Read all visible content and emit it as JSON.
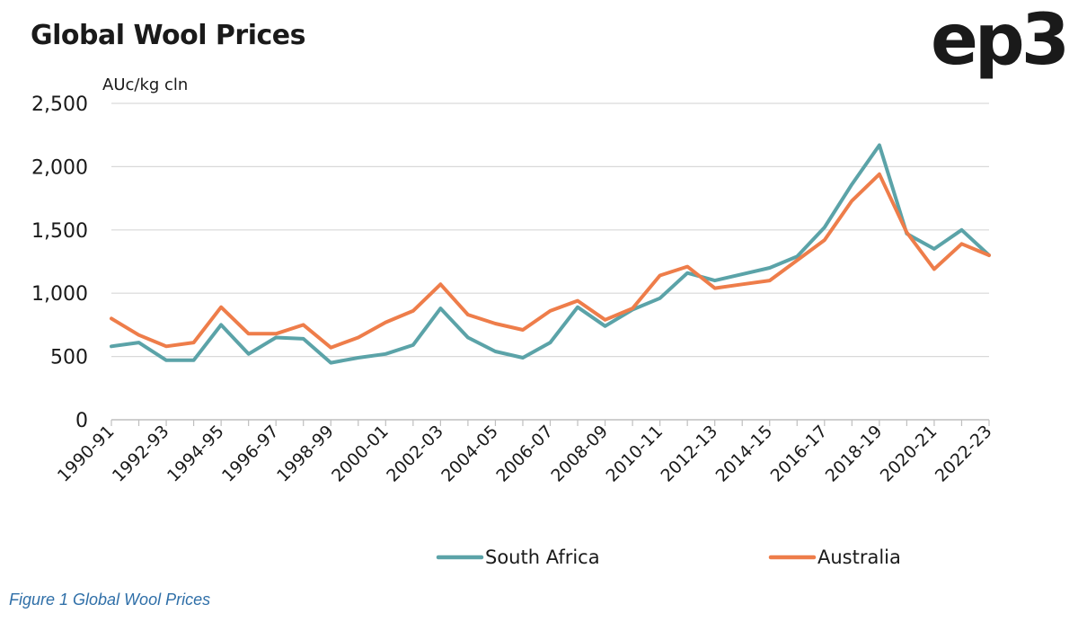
{
  "header": {
    "title": "Global Wool Prices",
    "logo_text": "ep3"
  },
  "caption": "Figure 1 Global Wool Prices",
  "chart_data": {
    "type": "line",
    "title": "Global Wool Prices",
    "ylabel": "AUc/kg cln",
    "xlabel": "",
    "ylim": [
      0,
      2500
    ],
    "yticks": [
      0,
      500,
      1000,
      1500,
      2000,
      2500
    ],
    "ytick_labels": [
      "0",
      "500",
      "1,000",
      "1,500",
      "2,000",
      "2,500"
    ],
    "grid": true,
    "legend_position": "bottom-center",
    "categories": [
      "1990-91",
      "1991-92",
      "1992-93",
      "1993-94",
      "1994-95",
      "1995-96",
      "1996-97",
      "1997-98",
      "1998-99",
      "1999-00",
      "2000-01",
      "2001-02",
      "2002-03",
      "2003-04",
      "2004-05",
      "2005-06",
      "2006-07",
      "2007-08",
      "2008-09",
      "2009-10",
      "2010-11",
      "2011-12",
      "2012-13",
      "2013-14",
      "2014-15",
      "2015-16",
      "2016-17",
      "2017-18",
      "2018-19",
      "2019-20",
      "2020-21",
      "2021-22",
      "2022-23"
    ],
    "tick_labels": [
      "1990-91",
      "1992-93",
      "1994-95",
      "1996-97",
      "1998-99",
      "2000-01",
      "2002-03",
      "2004-05",
      "2006-07",
      "2008-09",
      "2010-11",
      "2012-13",
      "2014-15",
      "2016-17",
      "2018-19",
      "2020-21",
      "2022-23"
    ],
    "series": [
      {
        "name": "South Africa",
        "color": "#5ba3a8",
        "values": [
          580,
          610,
          470,
          470,
          750,
          520,
          650,
          640,
          450,
          490,
          520,
          590,
          880,
          650,
          540,
          490,
          610,
          890,
          740,
          870,
          960,
          1160,
          1100,
          1150,
          1200,
          1290,
          1520,
          1860,
          2170,
          1470,
          1350,
          1500,
          1300
        ]
      },
      {
        "name": "Australia",
        "color": "#ee7d4a",
        "values": [
          800,
          670,
          580,
          610,
          890,
          680,
          680,
          750,
          570,
          650,
          770,
          860,
          1070,
          830,
          760,
          710,
          860,
          940,
          790,
          880,
          1140,
          1210,
          1040,
          1070,
          1100,
          1260,
          1420,
          1730,
          1940,
          1480,
          1190,
          1390,
          1300
        ]
      }
    ]
  }
}
